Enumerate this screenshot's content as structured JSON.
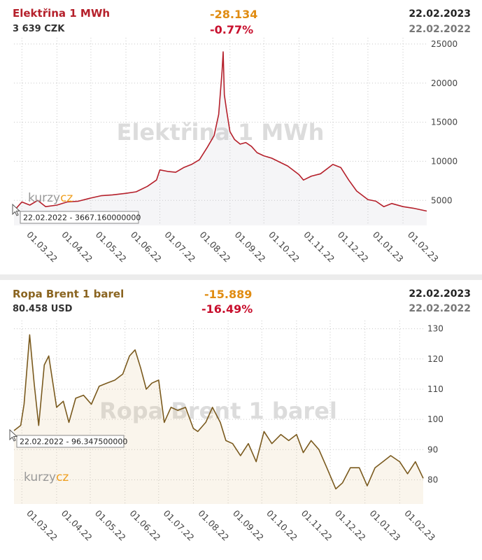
{
  "panels": [
    {
      "title": "Elektřina 1 MWh",
      "subtitle": "3 639 CZK",
      "change": "-28.134",
      "change_pct": "-0.77%",
      "date_current": "22.02.2023",
      "date_previous": "22.02.2022",
      "watermark": "Elektřina 1 MWh",
      "tooltip": "22.02.2022 - 3667.160000000",
      "logo_left": "kurzy",
      "logo_right": "cz"
    },
    {
      "title": "Ropa Brent 1 barel",
      "subtitle": "80.458 USD",
      "change": "-15.889",
      "change_pct": "-16.49%",
      "date_current": "22.02.2023",
      "date_previous": "22.02.2022",
      "watermark": "Ropa Brent 1 barel",
      "tooltip": "22.02.2022 - 96.347500000",
      "logo_left": "kurzy",
      "logo_right": "cz"
    }
  ],
  "colors": {
    "electricity_line": "#b5202b",
    "electricity_title": "#b5202b",
    "brent_line": "#7a5a1e",
    "brent_title": "#8a6420",
    "change": "#e08c12",
    "change_pct": "#c8102e",
    "grid": "#c8c8c8",
    "logo_left": "#999999",
    "logo_right": "#f0a020"
  },
  "chart_data": [
    {
      "type": "area",
      "title": "Elektřina 1 MWh",
      "x_tick_labels": [
        "01.03.22",
        "01.04.22",
        "01.05.22",
        "01.06.22",
        "01.07.22",
        "01.08.22",
        "01.09.22",
        "01.10.22",
        "01.11.22",
        "01.12.22",
        "01.01.23",
        "01.02.23"
      ],
      "y_tick_labels": [
        "5000",
        "10000",
        "15000",
        "20000",
        "25000"
      ],
      "ylim": [
        1800,
        25800
      ],
      "grid": true,
      "x": [
        "2022-02-22",
        "2022-03-01",
        "2022-03-08",
        "2022-03-15",
        "2022-03-22",
        "2022-04-01",
        "2022-04-10",
        "2022-04-20",
        "2022-05-01",
        "2022-05-10",
        "2022-05-20",
        "2022-06-01",
        "2022-06-10",
        "2022-06-20",
        "2022-06-28",
        "2022-07-01",
        "2022-07-08",
        "2022-07-15",
        "2022-07-22",
        "2022-07-29",
        "2022-08-05",
        "2022-08-12",
        "2022-08-18",
        "2022-08-22",
        "2022-08-25",
        "2022-08-26",
        "2022-08-27",
        "2022-08-29",
        "2022-09-01",
        "2022-09-05",
        "2022-09-10",
        "2022-09-15",
        "2022-09-20",
        "2022-09-25",
        "2022-10-01",
        "2022-10-08",
        "2022-10-15",
        "2022-10-22",
        "2022-11-01",
        "2022-11-05",
        "2022-11-12",
        "2022-11-20",
        "2022-12-01",
        "2022-12-08",
        "2022-12-15",
        "2022-12-22",
        "2023-01-01",
        "2023-01-08",
        "2023-01-15",
        "2023-01-22",
        "2023-02-01",
        "2023-02-10",
        "2023-02-22"
      ],
      "series": [
        {
          "values": [
            3667,
            4800,
            4400,
            5000,
            4200,
            4400,
            4800,
            4900,
            5300,
            5600,
            5700,
            5900,
            6100,
            6800,
            7600,
            8900,
            8700,
            8600,
            9200,
            9600,
            10200,
            11800,
            13300,
            16000,
            21500,
            24000,
            18500,
            16500,
            13800,
            12800,
            12200,
            12400,
            11900,
            11100,
            10700,
            10400,
            9900,
            9400,
            8300,
            7600,
            8100,
            8400,
            9600,
            9200,
            7600,
            6200,
            5100,
            4900,
            4200,
            4600,
            4200,
            4000,
            3639
          ]
        }
      ]
    },
    {
      "type": "area",
      "title": "Ropa Brent 1 barel",
      "x_tick_labels": [
        "01.03.22",
        "01.04.22",
        "01.05.22",
        "01.06.22",
        "01.07.22",
        "01.08.22",
        "01.09.22",
        "01.10.22",
        "01.11.22",
        "01.12.22",
        "01.01.23",
        "01.02.23"
      ],
      "y_tick_labels": [
        "80",
        "90",
        "100",
        "110",
        "120",
        "130"
      ],
      "ylim": [
        72,
        132
      ],
      "grid": true,
      "x": [
        "2022-02-22",
        "2022-02-28",
        "2022-03-03",
        "2022-03-08",
        "2022-03-12",
        "2022-03-16",
        "2022-03-21",
        "2022-03-25",
        "2022-04-01",
        "2022-04-07",
        "2022-04-12",
        "2022-04-18",
        "2022-04-25",
        "2022-05-02",
        "2022-05-09",
        "2022-05-16",
        "2022-05-23",
        "2022-05-30",
        "2022-06-05",
        "2022-06-10",
        "2022-06-15",
        "2022-06-20",
        "2022-06-25",
        "2022-07-01",
        "2022-07-06",
        "2022-07-12",
        "2022-07-18",
        "2022-07-25",
        "2022-08-01",
        "2022-08-05",
        "2022-08-12",
        "2022-08-18",
        "2022-08-25",
        "2022-08-30",
        "2022-09-05",
        "2022-09-12",
        "2022-09-19",
        "2022-09-26",
        "2022-10-03",
        "2022-10-10",
        "2022-10-18",
        "2022-10-25",
        "2022-11-01",
        "2022-11-07",
        "2022-11-14",
        "2022-11-21",
        "2022-11-28",
        "2022-12-06",
        "2022-12-12",
        "2022-12-19",
        "2022-12-27",
        "2023-01-03",
        "2023-01-10",
        "2023-01-17",
        "2023-01-24",
        "2023-02-01",
        "2023-02-08",
        "2023-02-15",
        "2023-02-22"
      ],
      "series": [
        {
          "values": [
            96.3,
            98,
            105,
            128,
            112,
            98,
            118,
            121,
            104,
            106,
            99,
            107,
            108,
            105,
            111,
            112,
            113,
            115,
            121,
            123,
            117,
            110,
            112,
            113,
            99,
            104,
            103,
            104,
            97,
            96,
            99,
            104,
            99,
            93,
            92,
            88,
            92,
            86,
            96,
            92,
            95,
            93,
            95,
            89,
            93,
            90,
            84,
            77,
            79,
            84,
            84,
            78,
            84,
            86,
            88,
            86,
            82,
            86,
            80.5
          ]
        }
      ]
    }
  ]
}
